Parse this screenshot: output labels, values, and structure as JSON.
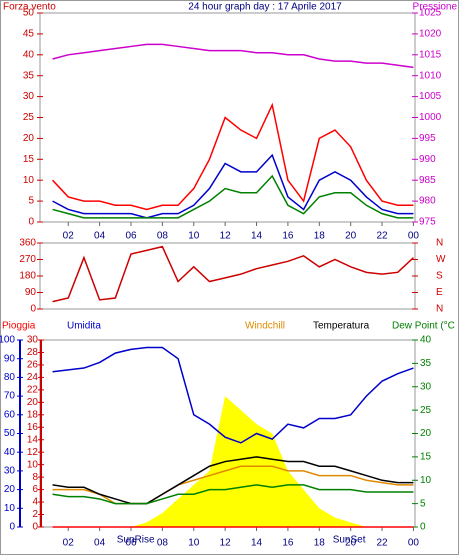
{
  "chart_data": [
    {
      "type": "line",
      "title": "24 hour graph day : 17 Aprile 2017",
      "y_label": "Forza vento",
      "y2_label": "Pressione",
      "x": [
        1,
        2,
        3,
        4,
        5,
        6,
        7,
        8,
        9,
        10,
        11,
        12,
        13,
        14,
        15,
        16,
        17,
        18,
        19,
        20,
        21,
        22,
        23,
        24
      ],
      "xlim": [
        0.2,
        24.1
      ],
      "xticks": [
        {
          "value": 2,
          "label": "02"
        },
        {
          "value": 4,
          "label": "04"
        },
        {
          "value": 6,
          "label": "06"
        },
        {
          "value": 8,
          "label": "08"
        },
        10,
        12,
        14,
        16,
        18,
        20,
        22,
        {
          "value": 24,
          "label": "00"
        }
      ],
      "ylim": [
        0,
        50
      ],
      "yticks": [
        0,
        5,
        10,
        15,
        20,
        25,
        30,
        35,
        40,
        45,
        50
      ],
      "y2lim": [
        975,
        1025
      ],
      "y2ticks": [
        975,
        980,
        985,
        990,
        995,
        1000,
        1005,
        1010,
        1015,
        1020,
        1025
      ],
      "series": [
        {
          "color": "#ff0000",
          "values": [
            10,
            6,
            5,
            5,
            4,
            4,
            3,
            4,
            4,
            8,
            15,
            25,
            22,
            20,
            28,
            10,
            5,
            20,
            22,
            18,
            10,
            5,
            4,
            4
          ]
        },
        {
          "color": "#0000cc",
          "values": [
            5,
            3,
            2,
            2,
            2,
            2,
            1,
            2,
            2,
            4,
            8,
            14,
            12,
            12,
            16,
            6,
            3,
            10,
            12,
            10,
            6,
            3,
            2,
            2
          ]
        },
        {
          "color": "#008000",
          "values": [
            3,
            2,
            1,
            1,
            1,
            1,
            1,
            1,
            1,
            3,
            5,
            8,
            7,
            7,
            11,
            4,
            2,
            6,
            7,
            7,
            4,
            2,
            1,
            1
          ]
        },
        {
          "color": "#cc00cc",
          "axis": "y2",
          "values": [
            1014,
            1015,
            1015.5,
            1016,
            1016.5,
            1017,
            1017.5,
            1017.5,
            1017,
            1016.5,
            1016,
            1016,
            1016,
            1015.5,
            1015.5,
            1015,
            1015,
            1014,
            1013.5,
            1013.5,
            1013,
            1013,
            1012.5,
            1012
          ]
        }
      ]
    },
    {
      "type": "line",
      "x": [
        1,
        2,
        3,
        4,
        5,
        6,
        7,
        8,
        9,
        10,
        11,
        12,
        13,
        14,
        15,
        16,
        17,
        18,
        19,
        20,
        21,
        22,
        23,
        24
      ],
      "xlim": [
        0.2,
        24.1
      ],
      "ylim": [
        0,
        360
      ],
      "yticks": [
        0,
        90,
        180,
        270,
        360
      ],
      "y2lim": [
        0,
        360
      ],
      "y2ticks": [
        {
          "value": 0,
          "label": "N"
        },
        {
          "value": 90,
          "label": "E"
        },
        {
          "value": 180,
          "label": "S"
        },
        {
          "value": 270,
          "label": "W"
        },
        {
          "value": 360,
          "label": "N"
        }
      ],
      "series": [
        {
          "color": "#cc0000",
          "values": [
            40,
            60,
            280,
            50,
            60,
            300,
            320,
            340,
            150,
            230,
            150,
            170,
            190,
            220,
            240,
            260,
            290,
            230,
            270,
            230,
            200,
            190,
            200,
            280
          ]
        }
      ]
    },
    {
      "type": "line",
      "x": [
        1,
        2,
        3,
        4,
        5,
        6,
        7,
        8,
        9,
        10,
        11,
        12,
        13,
        14,
        15,
        16,
        17,
        18,
        19,
        20,
        21,
        22,
        23,
        24
      ],
      "xlim": [
        0.2,
        24.1
      ],
      "xticks": [
        {
          "value": 2,
          "label": "02"
        },
        {
          "value": 4,
          "label": "04"
        },
        {
          "value": 6,
          "label": "06"
        },
        {
          "value": 8,
          "label": "08"
        },
        10,
        12,
        14,
        16,
        18,
        20,
        22,
        {
          "value": 24,
          "label": "00"
        }
      ],
      "ylim": [
        0,
        100
      ],
      "yticks": [
        0,
        10,
        20,
        30,
        40,
        50,
        60,
        70,
        80,
        90,
        100
      ],
      "y3lim": [
        0,
        30
      ],
      "y3ticks": [
        0,
        2,
        4,
        6,
        8,
        10,
        12,
        14,
        16,
        18,
        20,
        22,
        24,
        26,
        28,
        30
      ],
      "y2lim": [
        0,
        40
      ],
      "y2ticks": [
        0,
        5,
        10,
        15,
        20,
        25,
        30,
        35,
        40
      ],
      "series": [
        {
          "color": "#ffff00",
          "axis": "y2",
          "area": true,
          "values": [
            0,
            0,
            0,
            0,
            0,
            0,
            1,
            3,
            6,
            9,
            12,
            28,
            25,
            22,
            20,
            12,
            8,
            4,
            2,
            1,
            0,
            0,
            0,
            0
          ]
        },
        {
          "name": "Pioggia",
          "color": "#ff0000",
          "axis": "y3",
          "values": [
            0,
            0,
            0,
            0,
            0,
            0,
            0,
            0,
            0,
            0,
            0,
            0,
            0,
            0,
            0,
            0,
            0,
            0,
            0,
            0,
            0,
            0,
            0,
            0
          ]
        },
        {
          "name": "Umidita",
          "color": "#0000cc",
          "values": [
            83,
            84,
            85,
            88,
            93,
            95,
            96,
            96,
            90,
            60,
            55,
            48,
            45,
            50,
            47,
            55,
            53,
            58,
            58,
            60,
            70,
            78,
            82,
            85
          ]
        },
        {
          "name": "Windchill",
          "color": "#e08a00",
          "axis": "y2",
          "values": [
            8,
            8,
            8,
            7,
            5,
            5,
            5,
            7,
            9,
            10,
            11,
            12,
            13,
            13,
            13,
            12,
            12,
            11,
            11,
            11,
            10,
            9.5,
            9,
            9
          ]
        },
        {
          "name": "Temperatura",
          "color": "#000000",
          "axis": "y2",
          "values": [
            9,
            8.5,
            8.5,
            7,
            6,
            5,
            5,
            7,
            9,
            11,
            13,
            14,
            14.5,
            15,
            14.5,
            14,
            14,
            13,
            13,
            12,
            11,
            10,
            9.5,
            9.5
          ]
        },
        {
          "name": "Dew Point (°C",
          "color": "#008000",
          "axis": "y2",
          "values": [
            7,
            6.5,
            6.5,
            6,
            5,
            5,
            5,
            6,
            7,
            7,
            8,
            8,
            8.5,
            9,
            8.5,
            9,
            9,
            8,
            8,
            8,
            7.5,
            7.5,
            7.5,
            7.5
          ]
        }
      ],
      "annotations": [
        {
          "text": "SunRise",
          "x": 6.3
        },
        {
          "text": "SunSet",
          "x": 19.9
        }
      ]
    }
  ]
}
